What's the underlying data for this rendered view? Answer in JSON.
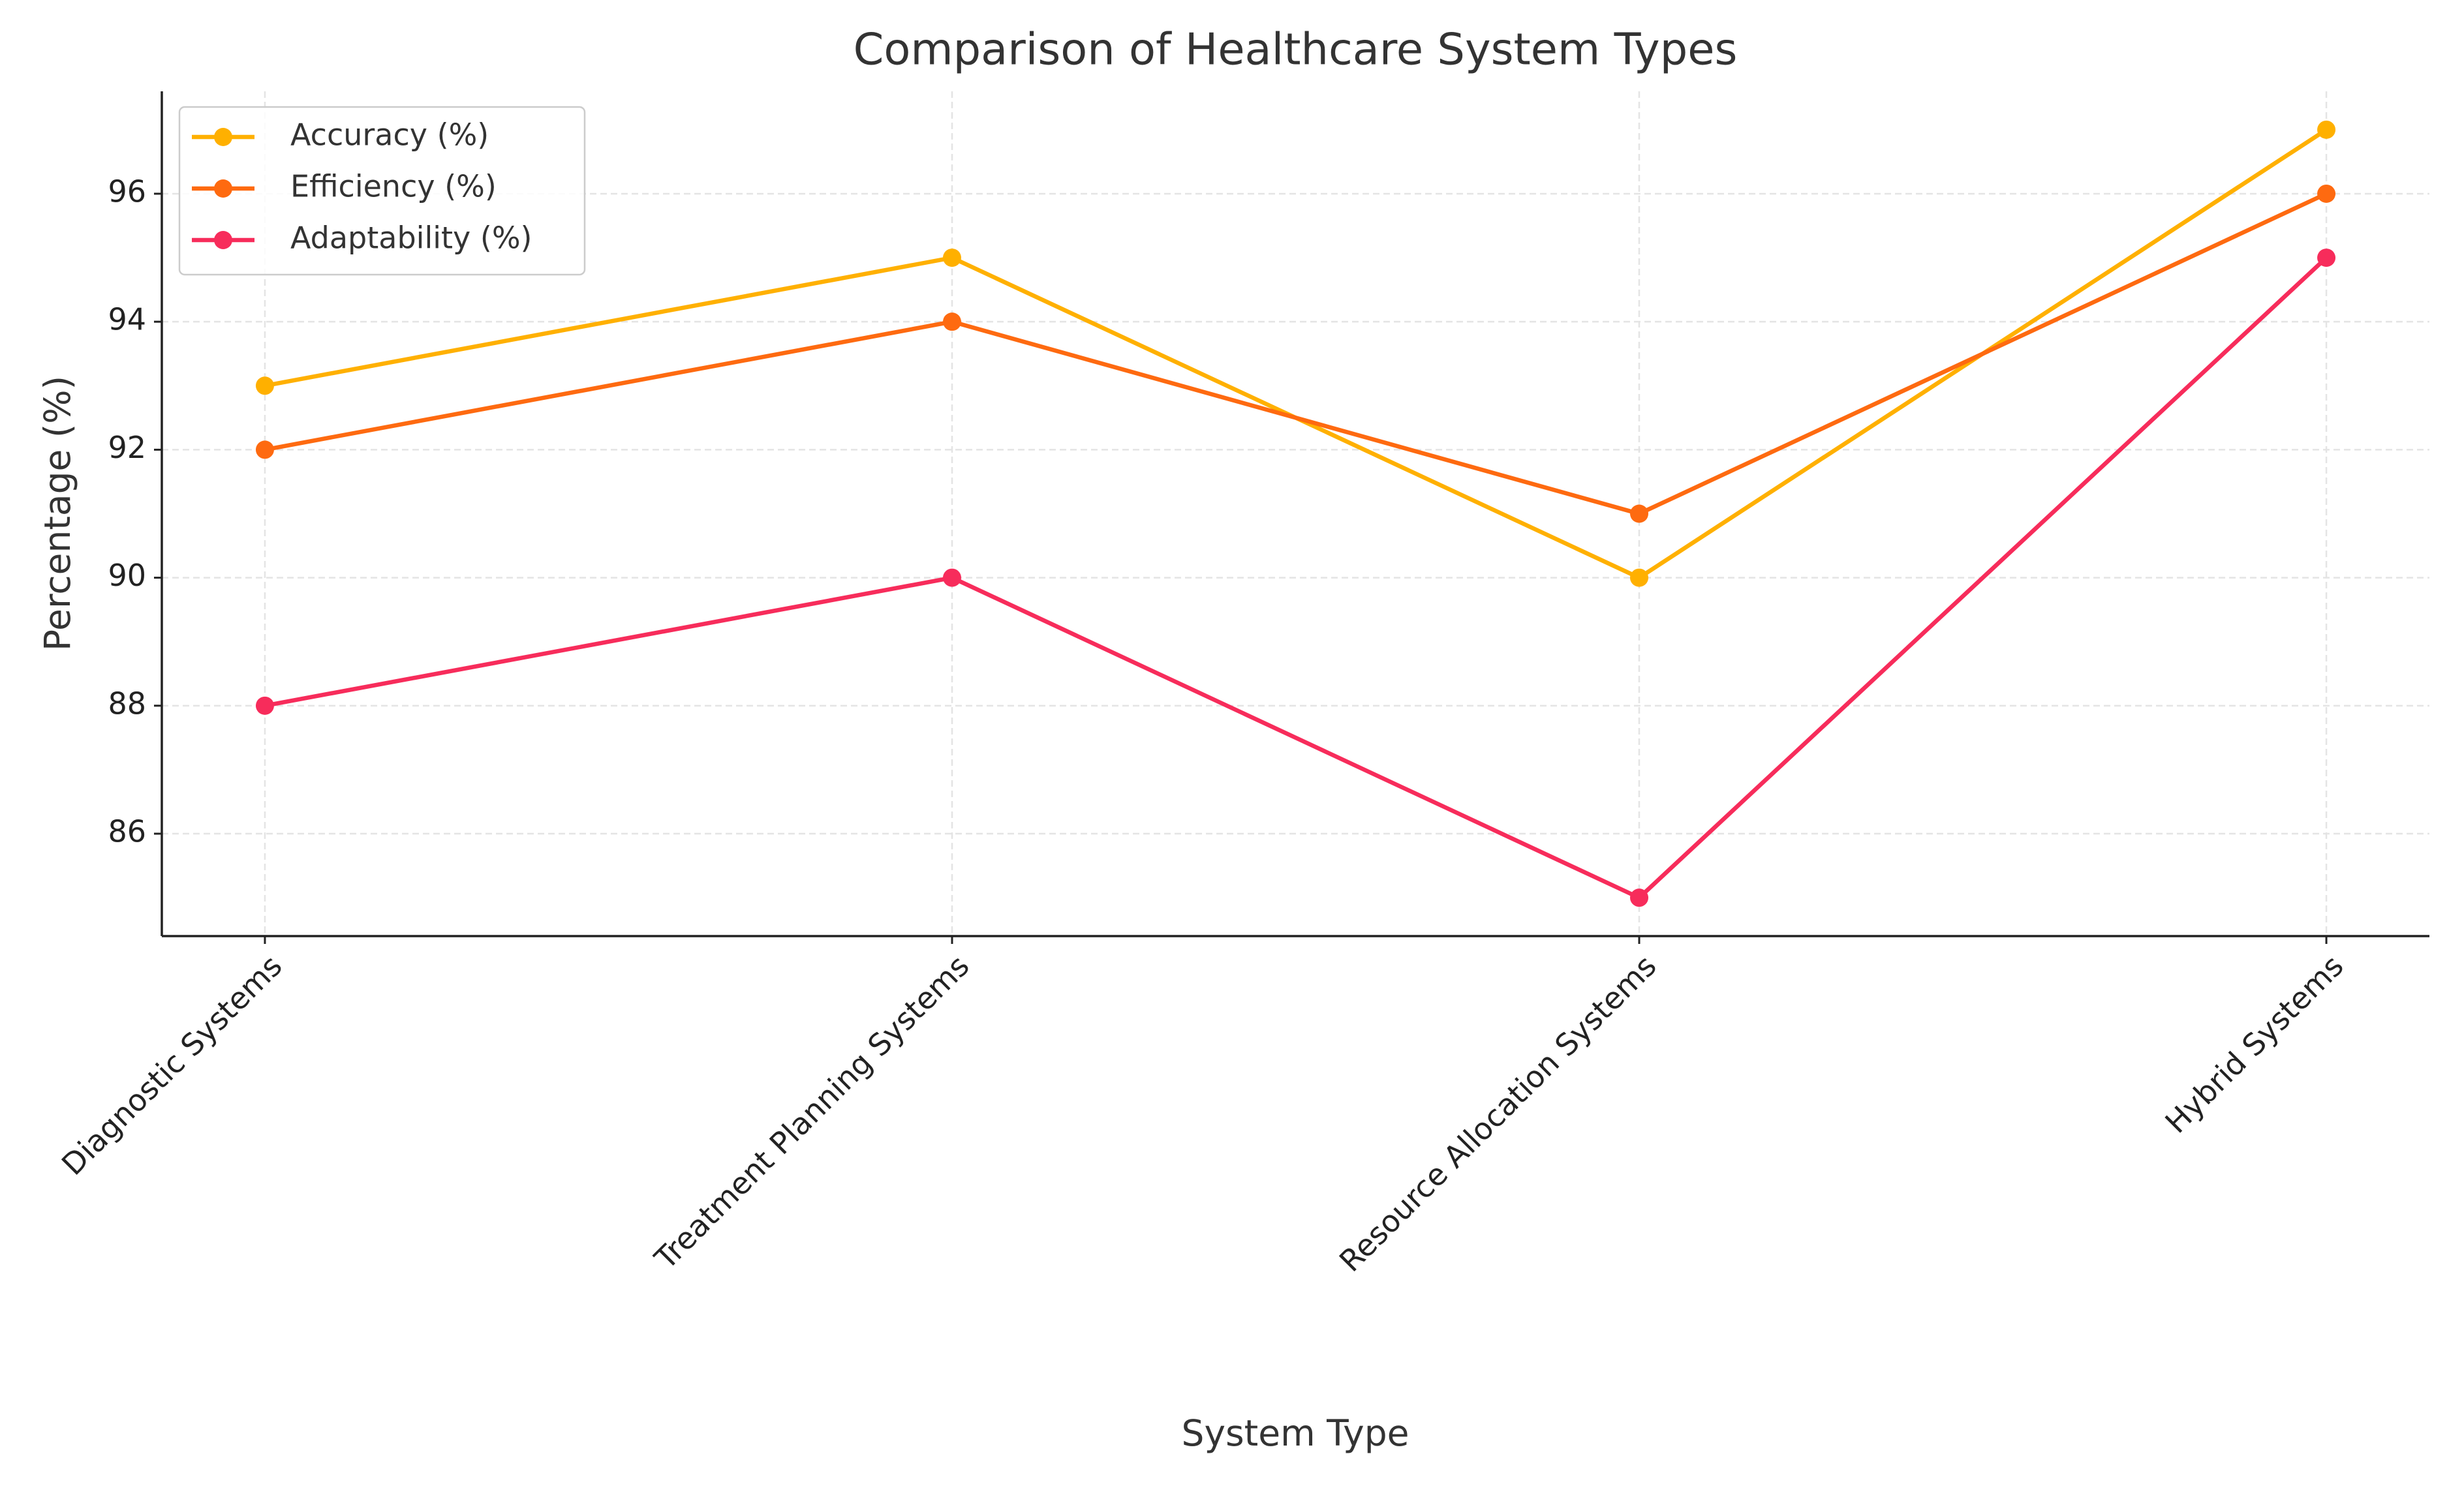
{
  "chart_data": {
    "type": "line",
    "title": "Comparison of Healthcare System Types",
    "x_label": "System Type",
    "y_label": "Percentage (%)",
    "categories": [
      "Diagnostic Systems",
      "Treatment Planning Systems",
      "Resource Allocation Systems",
      "Hybrid Systems"
    ],
    "series": [
      {
        "name": "Accuracy (%)",
        "color": "#ffb000",
        "values": [
          93,
          95,
          90,
          97
        ]
      },
      {
        "name": "Efficiency (%)",
        "color": "#fe6a10",
        "values": [
          92,
          94,
          91,
          96
        ]
      },
      {
        "name": "Adaptability (%)",
        "color": "#f72c5b",
        "values": [
          88,
          90,
          85,
          95
        ]
      }
    ],
    "ylim": [
      84.4,
      97.6
    ],
    "yticks": [
      86,
      88,
      90,
      92,
      94,
      96
    ],
    "grid": true,
    "legend": "upper left"
  }
}
